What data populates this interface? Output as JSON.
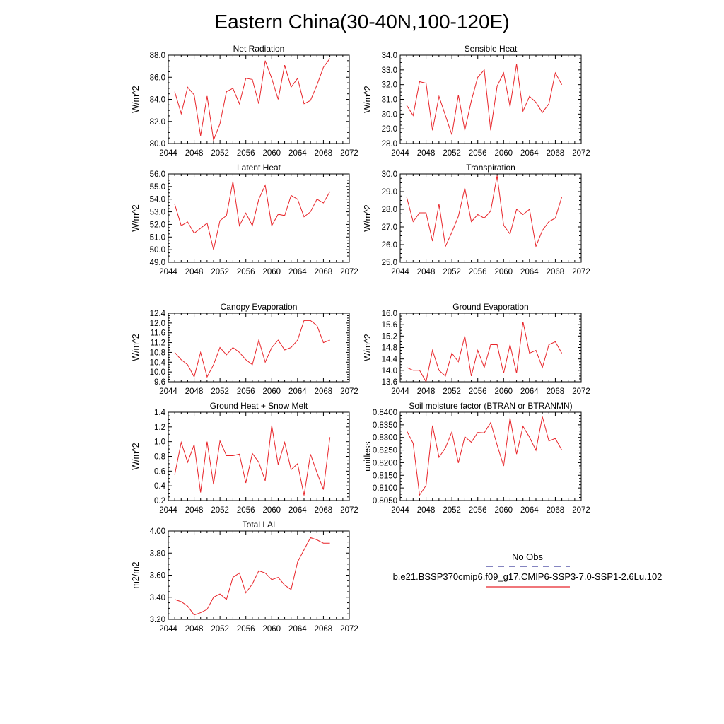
{
  "figure": {
    "title": "Eastern China(30-40N,100-120E)"
  },
  "legend": {
    "obs_label": "No Obs",
    "model_label": "b.e21.BSSP370cmip6.f09_g17.CMIP6-SSP3-7.0-SSP1-2.6Lu.102",
    "obs_color": "#3a3a9a",
    "model_color": "#e8252a"
  },
  "chart_data": [
    {
      "type": "line",
      "title": "Net Radiation",
      "ylabel": "W/m^2",
      "xlim": [
        2044,
        2072
      ],
      "xticks": [
        2044,
        2048,
        2052,
        2056,
        2060,
        2064,
        2068,
        2072
      ],
      "ylim": [
        80.0,
        88.0
      ],
      "yticks": [
        80.0,
        82.0,
        84.0,
        86.0,
        88.0
      ],
      "ydec": 1,
      "color": "#e8252a",
      "x": [
        2045,
        2046,
        2047,
        2048,
        2049,
        2050,
        2051,
        2052,
        2053,
        2054,
        2055,
        2056,
        2057,
        2058,
        2059,
        2060,
        2061,
        2062,
        2063,
        2064,
        2065,
        2066,
        2067,
        2068,
        2069
      ],
      "y": [
        84.7,
        82.7,
        85.1,
        84.4,
        80.7,
        84.3,
        80.3,
        81.8,
        84.7,
        85.0,
        83.6,
        85.9,
        85.8,
        83.6,
        87.5,
        85.9,
        84.0,
        87.1,
        85.1,
        85.9,
        83.6,
        83.9,
        85.3,
        86.9,
        87.7
      ]
    },
    {
      "type": "line",
      "title": "Sensible Heat",
      "ylabel": "W/m^2",
      "xlim": [
        2044,
        2072
      ],
      "xticks": [
        2044,
        2048,
        2052,
        2056,
        2060,
        2064,
        2068,
        2072
      ],
      "ylim": [
        28.0,
        34.0
      ],
      "yticks": [
        28.0,
        29.0,
        30.0,
        31.0,
        32.0,
        33.0,
        34.0
      ],
      "ydec": 1,
      "color": "#e8252a",
      "x": [
        2045,
        2046,
        2047,
        2048,
        2049,
        2050,
        2051,
        2052,
        2053,
        2054,
        2055,
        2056,
        2057,
        2058,
        2059,
        2060,
        2061,
        2062,
        2063,
        2064,
        2065,
        2066,
        2067,
        2068,
        2069
      ],
      "y": [
        30.6,
        29.9,
        32.2,
        32.1,
        28.9,
        31.2,
        29.9,
        28.6,
        31.3,
        28.9,
        30.9,
        32.5,
        33.0,
        28.9,
        31.9,
        32.8,
        30.5,
        33.4,
        30.2,
        31.2,
        30.8,
        30.1,
        30.7,
        32.8,
        32.0
      ]
    },
    {
      "type": "line",
      "title": "Latent Heat",
      "ylabel": "W/m^2",
      "xlim": [
        2044,
        2072
      ],
      "xticks": [
        2044,
        2048,
        2052,
        2056,
        2060,
        2064,
        2068,
        2072
      ],
      "ylim": [
        49.0,
        56.0
      ],
      "yticks": [
        49.0,
        50.0,
        51.0,
        52.0,
        53.0,
        54.0,
        55.0,
        56.0
      ],
      "ydec": 1,
      "color": "#e8252a",
      "x": [
        2045,
        2046,
        2047,
        2048,
        2049,
        2050,
        2051,
        2052,
        2053,
        2054,
        2055,
        2056,
        2057,
        2058,
        2059,
        2060,
        2061,
        2062,
        2063,
        2064,
        2065,
        2066,
        2067,
        2068,
        2069
      ],
      "y": [
        53.6,
        51.9,
        52.2,
        51.3,
        51.7,
        52.1,
        50.0,
        52.3,
        52.7,
        55.4,
        51.9,
        52.9,
        51.9,
        54.0,
        55.1,
        51.9,
        52.8,
        52.7,
        54.3,
        54.0,
        52.6,
        53.0,
        54.0,
        53.7,
        54.6
      ]
    },
    {
      "type": "line",
      "title": "Transpiration",
      "ylabel": "W/m^2",
      "xlim": [
        2044,
        2072
      ],
      "xticks": [
        2044,
        2048,
        2052,
        2056,
        2060,
        2064,
        2068,
        2072
      ],
      "ylim": [
        25.0,
        30.0
      ],
      "yticks": [
        25.0,
        26.0,
        27.0,
        28.0,
        29.0,
        30.0
      ],
      "ydec": 1,
      "color": "#e8252a",
      "x": [
        2045,
        2046,
        2047,
        2048,
        2049,
        2050,
        2051,
        2052,
        2053,
        2054,
        2055,
        2056,
        2057,
        2058,
        2059,
        2060,
        2061,
        2062,
        2063,
        2064,
        2065,
        2066,
        2067,
        2068,
        2069
      ],
      "y": [
        28.7,
        27.3,
        27.8,
        27.8,
        26.2,
        28.3,
        25.9,
        26.7,
        27.6,
        29.2,
        27.3,
        27.7,
        27.5,
        27.9,
        29.9,
        27.1,
        26.6,
        28.0,
        27.7,
        28.0,
        25.9,
        26.8,
        27.3,
        27.5,
        28.7
      ]
    },
    {
      "type": "line",
      "title": "Canopy Evaporation",
      "ylabel": "W/m^2",
      "xlim": [
        2044,
        2072
      ],
      "xticks": [
        2044,
        2048,
        2052,
        2056,
        2060,
        2064,
        2068,
        2072
      ],
      "ylim": [
        9.6,
        12.4
      ],
      "yticks": [
        9.6,
        10.0,
        10.4,
        10.8,
        11.2,
        11.6,
        12.0,
        12.4
      ],
      "ydec": 1,
      "color": "#e8252a",
      "x": [
        2045,
        2046,
        2047,
        2048,
        2049,
        2050,
        2051,
        2052,
        2053,
        2054,
        2055,
        2056,
        2057,
        2058,
        2059,
        2060,
        2061,
        2062,
        2063,
        2064,
        2065,
        2066,
        2067,
        2068,
        2069
      ],
      "y": [
        10.8,
        10.5,
        10.3,
        9.8,
        10.8,
        9.8,
        10.3,
        11.0,
        10.7,
        11.0,
        10.8,
        10.5,
        10.3,
        11.3,
        10.4,
        11.0,
        11.3,
        10.9,
        11.0,
        11.3,
        12.1,
        12.1,
        11.9,
        11.2,
        11.3
      ]
    },
    {
      "type": "line",
      "title": "Ground Evaporation",
      "ylabel": "W/m^2",
      "xlim": [
        2044,
        2072
      ],
      "xticks": [
        2044,
        2048,
        2052,
        2056,
        2060,
        2064,
        2068,
        2072
      ],
      "ylim": [
        13.6,
        16.0
      ],
      "yticks": [
        13.6,
        14.0,
        14.4,
        14.8,
        15.2,
        15.6,
        16.0
      ],
      "ydec": 1,
      "color": "#e8252a",
      "x": [
        2045,
        2046,
        2047,
        2048,
        2049,
        2050,
        2051,
        2052,
        2053,
        2054,
        2055,
        2056,
        2057,
        2058,
        2059,
        2060,
        2061,
        2062,
        2063,
        2064,
        2065,
        2066,
        2067,
        2068,
        2069
      ],
      "y": [
        14.1,
        14.0,
        14.0,
        13.6,
        14.7,
        14.0,
        13.8,
        14.6,
        14.3,
        15.2,
        13.8,
        14.7,
        14.1,
        14.9,
        14.9,
        13.9,
        14.9,
        13.9,
        15.7,
        14.6,
        14.7,
        14.1,
        14.9,
        15.0,
        14.6
      ]
    },
    {
      "type": "line",
      "title": "Ground Heat + Snow Melt",
      "ylabel": "W/m^2",
      "xlim": [
        2044,
        2072
      ],
      "xticks": [
        2044,
        2048,
        2052,
        2056,
        2060,
        2064,
        2068,
        2072
      ],
      "ylim": [
        0.2,
        1.4
      ],
      "yticks": [
        0.2,
        0.4,
        0.6,
        0.8,
        1.0,
        1.2,
        1.4
      ],
      "ydec": 1,
      "color": "#e8252a",
      "x": [
        2045,
        2046,
        2047,
        2048,
        2049,
        2050,
        2051,
        2052,
        2053,
        2054,
        2055,
        2056,
        2057,
        2058,
        2059,
        2060,
        2061,
        2062,
        2063,
        2064,
        2065,
        2066,
        2067,
        2068,
        2069
      ],
      "y": [
        0.55,
        0.99,
        0.72,
        0.96,
        0.31,
        1.0,
        0.42,
        1.01,
        0.81,
        0.81,
        0.83,
        0.44,
        0.84,
        0.72,
        0.47,
        1.22,
        0.69,
        0.99,
        0.62,
        0.7,
        0.27,
        0.83,
        0.58,
        0.35,
        1.06
      ]
    },
    {
      "type": "line",
      "title": "Soil moisture factor (BTRAN or BTRANMN)",
      "ylabel": "unitless",
      "xlim": [
        2044,
        2072
      ],
      "xticks": [
        2044,
        2048,
        2052,
        2056,
        2060,
        2064,
        2068,
        2072
      ],
      "ylim": [
        0.805,
        0.84
      ],
      "yticks": [
        0.805,
        0.81,
        0.815,
        0.82,
        0.825,
        0.83,
        0.835,
        0.84
      ],
      "ydec": 4,
      "color": "#e8252a",
      "x": [
        2045,
        2046,
        2047,
        2048,
        2049,
        2050,
        2051,
        2052,
        2053,
        2054,
        2055,
        2056,
        2057,
        2058,
        2059,
        2060,
        2061,
        2062,
        2063,
        2064,
        2065,
        2066,
        2067,
        2068,
        2069
      ],
      "y": [
        0.8327,
        0.8277,
        0.8072,
        0.811,
        0.8347,
        0.8221,
        0.8259,
        0.8322,
        0.8199,
        0.8303,
        0.8281,
        0.832,
        0.8318,
        0.8359,
        0.827,
        0.8187,
        0.8377,
        0.8234,
        0.8344,
        0.8301,
        0.8249,
        0.8382,
        0.8286,
        0.8296,
        0.825
      ]
    },
    {
      "type": "line",
      "title": "Total LAI",
      "ylabel": "m2/m2",
      "xlim": [
        2044,
        2072
      ],
      "xticks": [
        2044,
        2048,
        2052,
        2056,
        2060,
        2064,
        2068,
        2072
      ],
      "ylim": [
        3.2,
        4.0
      ],
      "yticks": [
        3.2,
        3.4,
        3.6,
        3.8,
        4.0
      ],
      "ydec": 2,
      "color": "#e8252a",
      "x": [
        2045,
        2046,
        2047,
        2048,
        2049,
        2050,
        2051,
        2052,
        2053,
        2054,
        2055,
        2056,
        2057,
        2058,
        2059,
        2060,
        2061,
        2062,
        2063,
        2064,
        2065,
        2066,
        2067,
        2068,
        2069
      ],
      "y": [
        3.38,
        3.36,
        3.32,
        3.24,
        3.26,
        3.29,
        3.4,
        3.43,
        3.38,
        3.58,
        3.62,
        3.44,
        3.52,
        3.64,
        3.62,
        3.56,
        3.58,
        3.51,
        3.47,
        3.72,
        3.83,
        3.94,
        3.92,
        3.89,
        3.89
      ]
    }
  ]
}
